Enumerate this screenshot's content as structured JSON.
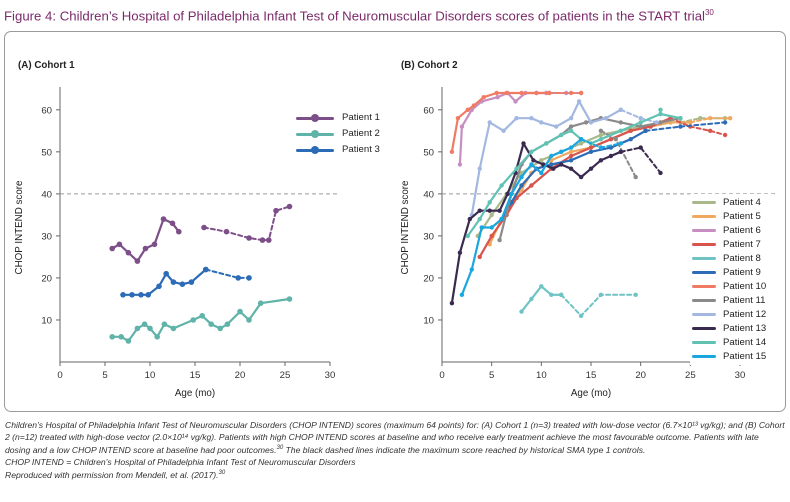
{
  "figure": {
    "title": "Figure 4: Children’s Hospital of Philadelphia Infant Test of Neuromuscular Disorders scores of patients in the START trial",
    "title_ref": "30"
  },
  "colors": {
    "title": "#7b2a6a",
    "dashed_line": "#999999",
    "axis": "#666666"
  },
  "chart_data": [
    {
      "type": "line",
      "title": "(A) Cohort 1",
      "xlabel": "Age (mo)",
      "ylabel": "CHOP INTEND score",
      "xlim": [
        0,
        30
      ],
      "ylim": [
        0,
        64
      ],
      "xticks": [
        0,
        5,
        10,
        15,
        20,
        25,
        30
      ],
      "yticks": [
        10,
        20,
        30,
        40,
        50,
        60
      ],
      "reference_line": 40,
      "legend_position": "top-right",
      "series": [
        {
          "name": "Patient 1",
          "color": "#7d4f89",
          "solid": [
            [
              5.8,
              27
            ],
            [
              6.6,
              28
            ],
            [
              7.6,
              26
            ],
            [
              8.6,
              24
            ],
            [
              9.5,
              27
            ],
            [
              10.5,
              28
            ],
            [
              11.5,
              34
            ],
            [
              12.5,
              33
            ],
            [
              13.2,
              31
            ]
          ],
          "dashed": [
            [
              16,
              32
            ],
            [
              18.5,
              31
            ],
            [
              21,
              29.5
            ],
            [
              22.5,
              29
            ],
            [
              23.2,
              29
            ],
            [
              24,
              36
            ],
            [
              25.5,
              37
            ]
          ]
        },
        {
          "name": "Patient 2",
          "color": "#5fb3a8",
          "solid": [
            [
              5.8,
              6
            ],
            [
              6.8,
              6
            ],
            [
              7.6,
              5
            ],
            [
              8.6,
              8
            ],
            [
              9.4,
              9
            ],
            [
              10,
              8
            ],
            [
              10.8,
              6
            ],
            [
              11.6,
              9
            ],
            [
              12.6,
              8
            ],
            [
              14.8,
              10
            ],
            [
              15.8,
              11
            ],
            [
              16.8,
              9
            ],
            [
              17.8,
              8
            ],
            [
              18.6,
              9
            ],
            [
              20,
              12
            ],
            [
              21,
              10
            ],
            [
              22.3,
              14
            ],
            [
              25.5,
              15
            ]
          ]
        },
        {
          "name": "Patient 3",
          "color": "#2c6bb5",
          "solid": [
            [
              7,
              16
            ],
            [
              8,
              16
            ],
            [
              9,
              16
            ],
            [
              9.8,
              16
            ],
            [
              11,
              18
            ],
            [
              11.8,
              21
            ],
            [
              12.6,
              19
            ],
            [
              13.6,
              18.5
            ],
            [
              14.6,
              19
            ],
            [
              16.2,
              22
            ]
          ],
          "dashed": [
            [
              16.2,
              22
            ],
            [
              19.8,
              20
            ],
            [
              21,
              20
            ]
          ]
        }
      ]
    },
    {
      "type": "line",
      "title": "(B) Cohort 2",
      "xlabel": "Age (mo)",
      "ylabel": "CHOP INTEND score",
      "xlim": [
        0,
        30
      ],
      "ylim": [
        0,
        64
      ],
      "xticks": [
        0,
        5,
        10,
        15,
        20,
        25,
        30
      ],
      "yticks": [
        10,
        20,
        30,
        40,
        50,
        60
      ],
      "reference_line": 40,
      "legend_position": "right",
      "series": [
        {
          "name": "Patient 4",
          "color": "#a9b98a",
          "solid": [
            [
              3.6,
              30
            ],
            [
              5,
              35
            ],
            [
              6.5,
              40
            ],
            [
              8,
              45
            ],
            [
              10,
              48
            ],
            [
              12,
              50
            ],
            [
              14,
              52
            ],
            [
              16,
              54
            ],
            [
              18,
              55
            ],
            [
              20,
              56
            ],
            [
              22,
              57
            ],
            [
              24,
              57
            ]
          ],
          "dashed": [
            [
              24,
              57
            ],
            [
              26,
              58
            ],
            [
              28.5,
              58
            ]
          ]
        },
        {
          "name": "Patient 5",
          "color": "#f0a85e",
          "solid": [
            [
              4.8,
              28
            ],
            [
              5.8,
              33
            ],
            [
              7,
              38
            ],
            [
              8,
              41
            ],
            [
              9,
              45
            ],
            [
              11,
              48
            ],
            [
              13,
              50
            ],
            [
              15,
              51
            ],
            [
              17,
              53
            ],
            [
              19,
              55
            ],
            [
              21,
              56
            ],
            [
              23,
              57
            ],
            [
              25,
              57
            ]
          ],
          "dashed": [
            [
              25,
              57
            ],
            [
              27,
              58
            ],
            [
              29,
              58
            ]
          ]
        },
        {
          "name": "Patient 6",
          "color": "#c78fc1",
          "solid": [
            [
              1.8,
              47
            ],
            [
              2,
              56
            ],
            [
              3,
              60
            ],
            [
              4,
              62
            ],
            [
              5.6,
              63
            ],
            [
              6.6,
              64
            ],
            [
              7.4,
              62
            ],
            [
              8.4,
              64
            ],
            [
              9.5,
              64
            ],
            [
              10.5,
              64
            ]
          ],
          "dashed": [
            [
              10.5,
              64
            ],
            [
              12.5,
              64
            ],
            [
              14,
              64
            ]
          ]
        },
        {
          "name": "Patient 7",
          "color": "#d8544c",
          "solid": [
            [
              3.8,
              25
            ],
            [
              5,
              30
            ],
            [
              6.5,
              35
            ],
            [
              7.5,
              39
            ],
            [
              9,
              42
            ],
            [
              11,
              46
            ],
            [
              13,
              49
            ],
            [
              15,
              51
            ],
            [
              17,
              53
            ],
            [
              19,
              55
            ],
            [
              21,
              56
            ],
            [
              23,
              58
            ]
          ],
          "dashed": [
            [
              23,
              58
            ],
            [
              25,
              56
            ],
            [
              27,
              55
            ],
            [
              28.5,
              54
            ]
          ]
        },
        {
          "name": "Patient 8",
          "color": "#6ec3c5",
          "solid": [
            [
              8,
              12
            ],
            [
              9,
              15
            ],
            [
              10,
              18
            ],
            [
              11,
              16
            ],
            [
              12,
              16
            ]
          ],
          "dashed": [
            [
              12,
              16
            ],
            [
              14,
              11
            ],
            [
              16,
              16
            ],
            [
              19.5,
              16
            ]
          ]
        },
        {
          "name": "Patient 9",
          "color": "#2c6bb5",
          "solid": [
            [
              6,
              34
            ],
            [
              7,
              38
            ],
            [
              8,
              42
            ],
            [
              9.5,
              46
            ],
            [
              11,
              47
            ],
            [
              13,
              48
            ],
            [
              15,
              50
            ],
            [
              17,
              51
            ],
            [
              19,
              53
            ],
            [
              20.5,
              55
            ]
          ],
          "dashed": [
            [
              20.5,
              55
            ],
            [
              24,
              56
            ],
            [
              28.5,
              57
            ]
          ]
        },
        {
          "name": "Patient 10",
          "color": "#f07a63",
          "solid": [
            [
              1,
              50
            ],
            [
              1.6,
              58
            ],
            [
              2.6,
              60
            ],
            [
              3.2,
              61
            ],
            [
              4.2,
              63
            ],
            [
              5.5,
              64
            ],
            [
              6.5,
              64
            ],
            [
              8,
              64
            ],
            [
              9.5,
              64
            ],
            [
              10.8,
              64
            ]
          ],
          "dashed": [
            [
              10.8,
              64
            ],
            [
              13,
              64
            ],
            [
              14,
              64
            ]
          ]
        },
        {
          "name": "Patient 11",
          "color": "#8a8a8a",
          "solid": [
            [
              5.8,
              29
            ],
            [
              7,
              40
            ],
            [
              8,
              47
            ],
            [
              9,
              50
            ],
            [
              10.5,
              52
            ],
            [
              12,
              54
            ],
            [
              13,
              56
            ],
            [
              14.5,
              57
            ],
            [
              16,
              58
            ],
            [
              18,
              57
            ],
            [
              20,
              56
            ],
            [
              22,
              57
            ],
            [
              24,
              58
            ]
          ],
          "dashed": [
            [
              16,
              55
            ],
            [
              17.5,
              53
            ],
            [
              19.5,
              44
            ]
          ]
        },
        {
          "name": "Patient 12",
          "color": "#a3b8e1",
          "solid": [
            [
              3,
              35
            ],
            [
              3.8,
              46
            ],
            [
              4.8,
              57
            ],
            [
              6.2,
              55
            ],
            [
              7.5,
              58
            ],
            [
              9,
              58
            ],
            [
              10,
              57
            ],
            [
              11.5,
              56
            ],
            [
              13,
              58
            ],
            [
              13.8,
              62
            ],
            [
              15,
              57
            ],
            [
              16.5,
              58
            ],
            [
              18,
              60
            ]
          ],
          "dashed": [
            [
              18,
              60
            ],
            [
              20,
              58
            ],
            [
              21.6,
              57
            ]
          ]
        },
        {
          "name": "Patient 13",
          "color": "#3a2a4f",
          "solid": [
            [
              1,
              14
            ],
            [
              1.8,
              26
            ],
            [
              2.8,
              34
            ],
            [
              3.8,
              36
            ],
            [
              4.8,
              36
            ],
            [
              5.8,
              36
            ],
            [
              6.6,
              40
            ],
            [
              7.4,
              45
            ],
            [
              8.2,
              52
            ],
            [
              9.2,
              48
            ],
            [
              10.2,
              47
            ],
            [
              11.2,
              46
            ],
            [
              12,
              47
            ],
            [
              13,
              46
            ],
            [
              14,
              44
            ],
            [
              15,
              46
            ],
            [
              16,
              48
            ],
            [
              17,
              49
            ],
            [
              18,
              50
            ]
          ],
          "dashed": [
            [
              18,
              50
            ],
            [
              20,
              51
            ],
            [
              22,
              45
            ]
          ]
        },
        {
          "name": "Patient 14",
          "color": "#5fc2b3",
          "solid": [
            [
              2.6,
              30
            ],
            [
              3.8,
              34
            ],
            [
              4.8,
              38
            ],
            [
              6,
              42
            ],
            [
              7.5,
              46
            ],
            [
              9,
              50
            ],
            [
              10.5,
              52
            ],
            [
              12,
              54
            ],
            [
              13,
              55
            ],
            [
              14,
              53
            ],
            [
              15,
              52
            ],
            [
              16,
              53
            ],
            [
              18,
              55
            ],
            [
              20,
              57
            ],
            [
              22,
              59
            ],
            [
              24,
              58
            ]
          ],
          "dashed": [
            [
              22,
              59
            ],
            [
              22,
              60
            ]
          ]
        },
        {
          "name": "Patient 15",
          "color": "#1aa7e0",
          "solid": [
            [
              2,
              16
            ],
            [
              3,
              22
            ],
            [
              4,
              32
            ],
            [
              5,
              32
            ],
            [
              6,
              34
            ],
            [
              7,
              40
            ],
            [
              8,
              44
            ],
            [
              9,
              47
            ],
            [
              10,
              45
            ],
            [
              11,
              49
            ],
            [
              12,
              50
            ],
            [
              13,
              51
            ],
            [
              14,
              53
            ]
          ],
          "dashed": [
            [
              14,
              53
            ],
            [
              16,
              51
            ],
            [
              18,
              52
            ]
          ]
        }
      ]
    }
  ],
  "caption": {
    "line1": "Children’s Hospital of Philadelphia Infant Test of Neuromuscular Disorders (CHOP INTEND) scores (maximum 64 points) for: (A) Cohort 1 (n=3) treated with low-dose vector (6.7×10¹³ vg/kg); and (B) Cohort 2 (n=12) treated with high-dose vector (2.0×10¹⁴ vg/kg). Patients with high CHOP INTEND scores at baseline and who receive early treatment achieve the most favourable outcome. Patients with late dosing and a low CHOP INTEND score at baseline had poor outcomes.",
    "line1_ref": "30",
    "line1_tail": " The black dashed lines indicate the maximum score reached by historical SMA type 1 controls.",
    "line2": "CHOP INTEND = Children’s Hospital of Philadelphia Infant Test of Neuromuscular Disorders",
    "line3": "Reproduced with permission from Mendell, et al. (2017).",
    "line3_ref": "30"
  }
}
